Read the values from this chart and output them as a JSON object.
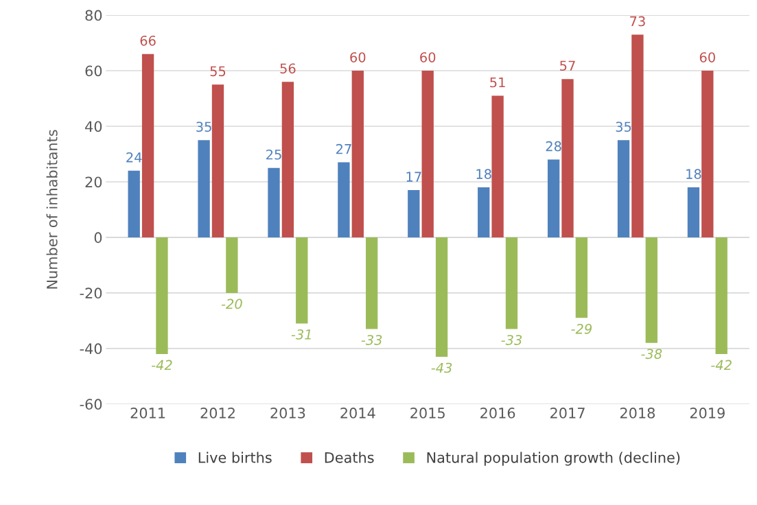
{
  "chart_data": {
    "type": "bar",
    "ylabel": "Number of inhabitants",
    "categories": [
      "2011",
      "2012",
      "2013",
      "2014",
      "2015",
      "2016",
      "2017",
      "2018",
      "2019"
    ],
    "series": [
      {
        "name": "Live births",
        "color": "#4f81bd",
        "values": [
          24,
          35,
          25,
          27,
          17,
          18,
          28,
          35,
          18
        ]
      },
      {
        "name": "Deaths",
        "color": "#c0504d",
        "values": [
          66,
          55,
          56,
          60,
          60,
          51,
          57,
          73,
          60
        ]
      },
      {
        "name": "Natural population growth (decline)",
        "color": "#9bbb59",
        "values": [
          -42,
          -20,
          -31,
          -33,
          -43,
          -33,
          -29,
          -38,
          -42
        ]
      }
    ],
    "ylim": [
      -60,
      80
    ],
    "yticks": [
      -60,
      -40,
      -20,
      0,
      20,
      40,
      60,
      80
    ],
    "grid": "y",
    "legend": "bottom",
    "data_labels": true
  }
}
